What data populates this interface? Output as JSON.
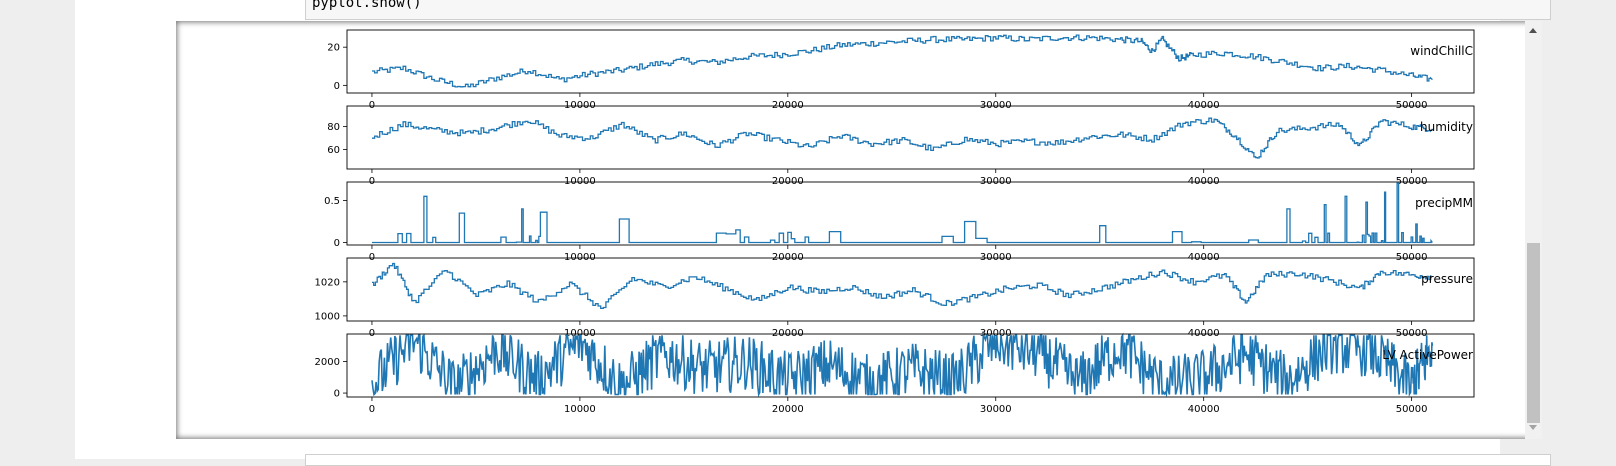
{
  "code": {
    "last_line": "pyplot.show()"
  },
  "chart_data": [
    {
      "type": "line",
      "title": "windChillC",
      "x_ticks": [
        0,
        10000,
        20000,
        30000,
        40000,
        50000
      ],
      "y_ticks": [
        0,
        20
      ],
      "xlim": [
        -1200,
        53000
      ],
      "ylim": [
        -4,
        29
      ],
      "color": "#1f77b4",
      "series": [
        {
          "values": [
            [
              0,
              7
            ],
            [
              1500,
              9
            ],
            [
              3000,
              3
            ],
            [
              4500,
              -1
            ],
            [
              6000,
              4
            ],
            [
              7500,
              8
            ],
            [
              9000,
              3
            ],
            [
              10500,
              6
            ],
            [
              12000,
              8
            ],
            [
              13500,
              11
            ],
            [
              15000,
              13
            ],
            [
              16500,
              12
            ],
            [
              18000,
              15
            ],
            [
              19500,
              16
            ],
            [
              21000,
              18
            ],
            [
              22500,
              21
            ],
            [
              24000,
              22
            ],
            [
              25500,
              23
            ],
            [
              27000,
              24
            ],
            [
              28500,
              24
            ],
            [
              30000,
              25
            ],
            [
              31500,
              24
            ],
            [
              33000,
              25
            ],
            [
              34500,
              25
            ],
            [
              36000,
              24
            ],
            [
              37000,
              23
            ],
            [
              37500,
              18
            ],
            [
              38000,
              24
            ],
            [
              38800,
              14
            ],
            [
              39500,
              16
            ],
            [
              41000,
              17
            ],
            [
              42500,
              15
            ],
            [
              44000,
              12
            ],
            [
              45500,
              9
            ],
            [
              47000,
              10
            ],
            [
              48500,
              8
            ],
            [
              50000,
              5
            ],
            [
              51000,
              3
            ]
          ]
        }
      ]
    },
    {
      "type": "line",
      "title": "humidity",
      "x_ticks": [
        0,
        10000,
        20000,
        30000,
        40000,
        50000
      ],
      "y_ticks": [
        60,
        80
      ],
      "xlim": [
        -1200,
        53000
      ],
      "ylim": [
        43,
        98
      ],
      "color": "#1f77b4",
      "series": [
        {
          "values": [
            [
              0,
              71
            ],
            [
              1500,
              82
            ],
            [
              3000,
              77
            ],
            [
              4500,
              74
            ],
            [
              6000,
              79
            ],
            [
              7500,
              86
            ],
            [
              9000,
              72
            ],
            [
              10500,
              70
            ],
            [
              12000,
              82
            ],
            [
              13500,
              68
            ],
            [
              15000,
              74
            ],
            [
              16500,
              63
            ],
            [
              18000,
              74
            ],
            [
              19500,
              68
            ],
            [
              21000,
              62
            ],
            [
              22500,
              72
            ],
            [
              24000,
              65
            ],
            [
              25500,
              68
            ],
            [
              27000,
              60
            ],
            [
              28500,
              69
            ],
            [
              30000,
              65
            ],
            [
              31500,
              67
            ],
            [
              33000,
              66
            ],
            [
              34500,
              71
            ],
            [
              36000,
              73
            ],
            [
              37500,
              69
            ],
            [
              39000,
              83
            ],
            [
              40500,
              86
            ],
            [
              41500,
              72
            ],
            [
              42500,
              52
            ],
            [
              43500,
              76
            ],
            [
              45000,
              79
            ],
            [
              46500,
              82
            ],
            [
              47500,
              63
            ],
            [
              48500,
              85
            ],
            [
              50000,
              80
            ],
            [
              51000,
              78
            ]
          ]
        }
      ]
    },
    {
      "type": "line",
      "title": "precipMM",
      "x_ticks": [
        0,
        10000,
        20000,
        30000,
        40000,
        50000
      ],
      "y_ticks": [
        0.0,
        0.5
      ],
      "xlim": [
        -1200,
        53000
      ],
      "ylim": [
        -0.03,
        0.72
      ],
      "color": "#1f77b4",
      "series": [
        {
          "values": [
            [
              0,
              0
            ],
            [
              2500,
              0.55
            ],
            [
              4200,
              0.35
            ],
            [
              7200,
              0.4
            ],
            [
              8100,
              0.36
            ],
            [
              11900,
              0.28
            ],
            [
              17500,
              0.15
            ],
            [
              20000,
              0.12
            ],
            [
              22000,
              0.13
            ],
            [
              28500,
              0.25
            ],
            [
              35000,
              0.2
            ],
            [
              38500,
              0.13
            ],
            [
              44000,
              0.4
            ],
            [
              45800,
              0.45
            ],
            [
              46800,
              0.55
            ],
            [
              47800,
              0.48
            ],
            [
              48700,
              0.6
            ],
            [
              49300,
              0.72
            ],
            [
              50200,
              0.22
            ],
            [
              51000,
              0
            ]
          ]
        }
      ]
    },
    {
      "type": "line",
      "title": "pressure",
      "x_ticks": [
        0,
        10000,
        20000,
        30000,
        40000,
        50000
      ],
      "y_ticks": [
        1000,
        1020
      ],
      "xlim": [
        -1200,
        53000
      ],
      "ylim": [
        997,
        1034
      ],
      "color": "#1f77b4",
      "series": [
        {
          "values": [
            [
              0,
              1018
            ],
            [
              1000,
              1031
            ],
            [
              2000,
              1008
            ],
            [
              3500,
              1027
            ],
            [
              5000,
              1012
            ],
            [
              6500,
              1019
            ],
            [
              8000,
              1008
            ],
            [
              9500,
              1019
            ],
            [
              11000,
              1004
            ],
            [
              12500,
              1022
            ],
            [
              14000,
              1017
            ],
            [
              15500,
              1023
            ],
            [
              17000,
              1016
            ],
            [
              18500,
              1009
            ],
            [
              20000,
              1017
            ],
            [
              21500,
              1014
            ],
            [
              23000,
              1017
            ],
            [
              24500,
              1011
            ],
            [
              26000,
              1015
            ],
            [
              27500,
              1007
            ],
            [
              29000,
              1011
            ],
            [
              30500,
              1016
            ],
            [
              32000,
              1018
            ],
            [
              33500,
              1012
            ],
            [
              35000,
              1016
            ],
            [
              36500,
              1021
            ],
            [
              38000,
              1026
            ],
            [
              39500,
              1020
            ],
            [
              41000,
              1024
            ],
            [
              42000,
              1008
            ],
            [
              43000,
              1024
            ],
            [
              44500,
              1025
            ],
            [
              46000,
              1021
            ],
            [
              47500,
              1016
            ],
            [
              48500,
              1026
            ],
            [
              50000,
              1024
            ],
            [
              51000,
              1023
            ]
          ]
        }
      ]
    },
    {
      "type": "line",
      "title": "LV ActivePower",
      "x_ticks": [
        0,
        10000,
        20000,
        30000,
        40000,
        50000
      ],
      "y_ticks": [
        0,
        2000
      ],
      "xlim": [
        -1200,
        53000
      ],
      "ylim": [
        -250,
        3750
      ],
      "color": "#1f77b4",
      "series": [
        {
          "values": [
            [
              0,
              500
            ],
            [
              2000,
              3400
            ],
            [
              4000,
              300
            ],
            [
              6000,
              2800
            ],
            [
              8000,
              900
            ],
            [
              10000,
              3300
            ],
            [
              12000,
              400
            ],
            [
              14000,
              2500
            ],
            [
              16000,
              1500
            ],
            [
              18000,
              2000
            ],
            [
              20000,
              800
            ],
            [
              22000,
              1800
            ],
            [
              24000,
              600
            ],
            [
              26000,
              1500
            ],
            [
              28000,
              700
            ],
            [
              30000,
              3300
            ],
            [
              32000,
              2600
            ],
            [
              34000,
              700
            ],
            [
              36000,
              3000
            ],
            [
              38000,
              500
            ],
            [
              40000,
              1000
            ],
            [
              42000,
              2500
            ],
            [
              44000,
              700
            ],
            [
              46000,
              3000
            ],
            [
              48000,
              2800
            ],
            [
              50000,
              400
            ],
            [
              51000,
              3000
            ]
          ]
        }
      ]
    }
  ]
}
